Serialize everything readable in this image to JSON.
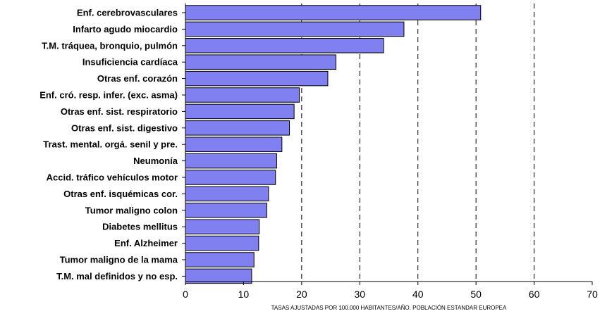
{
  "chart_data": {
    "type": "bar",
    "orientation": "horizontal",
    "categories": [
      "Enf. cerebrovasculares",
      "Infarto agudo miocardio",
      "T.M. tráquea, bronquio,  pulmón",
      "Insuficiencia cardíaca",
      "Otras enf. corazón",
      "Enf. cró. resp. infer. (exc. asma)",
      "Otras enf. sist. respiratorio",
      "Otras enf. sist. digestivo",
      "Trast. mental. orgá. senil y pre.",
      "Neumonía",
      "Accid. tráfico vehículos motor",
      "Otras enf. isquémicas cor.",
      "Tumor maligno colon",
      "Diabetes mellitus",
      "Enf. Alzheimer",
      "Tumor maligno de la mama",
      "T.M. mal definidos y no esp."
    ],
    "values": [
      50.8,
      37.6,
      34.1,
      25.9,
      24.5,
      19.6,
      18.7,
      17.9,
      16.6,
      15.7,
      15.5,
      14.3,
      14.0,
      12.7,
      12.6,
      11.8,
      11.4
    ],
    "title": "",
    "xlabel": "TASAS AJUSTADAS POR 100.000 HABITANTES/AÑO. POBLACIÓN ESTANDAR EUROPEA",
    "ylabel": "",
    "xlim": [
      0,
      70
    ],
    "xticks": [
      "0",
      "10",
      "20",
      "30",
      "40",
      "50",
      "60",
      "70"
    ],
    "grid_x": [
      20,
      30,
      40,
      50,
      60
    ],
    "bar_color": "#8080f0",
    "legend": "none"
  }
}
